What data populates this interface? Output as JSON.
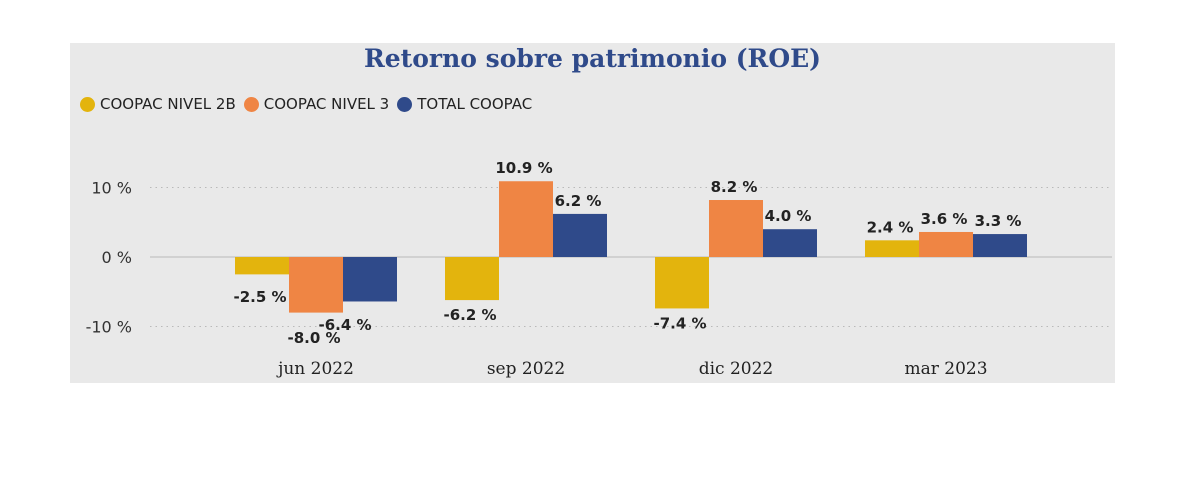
{
  "chart_data": {
    "type": "bar",
    "title": "Retorno sobre patrimonio (ROE)",
    "categories": [
      "jun 2022",
      "sep 2022",
      "dic 2022",
      "mar 2023"
    ],
    "series": [
      {
        "name": "COOPAC NIVEL 2B",
        "color": "#e3b40d",
        "values": [
          -2.5,
          -6.2,
          -7.4,
          2.4
        ],
        "labels": [
          "-2.5 %",
          "-6.2 %",
          "-7.4 %",
          "2.4 %"
        ]
      },
      {
        "name": "COOPAC NIVEL 3",
        "color": "#ef8544",
        "values": [
          -8.0,
          10.9,
          8.2,
          3.6
        ],
        "labels": [
          "-8.0 %",
          "10.9 %",
          "8.2 %",
          "3.6 %"
        ]
      },
      {
        "name": "TOTAL COOPAC",
        "color": "#2f4a8a",
        "values": [
          -6.4,
          6.2,
          4.0,
          3.3
        ],
        "labels": [
          "-6.4 %",
          "6.2 %",
          "4.0 %",
          "3.3 %"
        ]
      }
    ],
    "y_ticks": [
      {
        "value": 10,
        "label": "10 %"
      },
      {
        "value": 0,
        "label": "0 %"
      },
      {
        "value": -10,
        "label": "-10 %"
      }
    ],
    "ylim": [
      -12,
      12
    ],
    "grid": true,
    "legend_position": "top-left"
  }
}
